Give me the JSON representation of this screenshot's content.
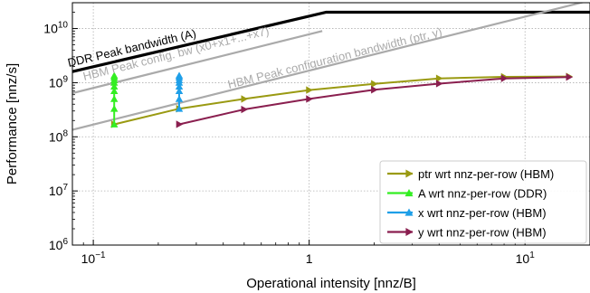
{
  "chart_data": {
    "type": "line",
    "xlabel": "Operational intensity [nnz/B]",
    "ylabel": "Performance [nnz/s]",
    "xscale": "log",
    "yscale": "log",
    "xlim": [
      0.08,
      20
    ],
    "ylim": [
      1000000,
      30000000000
    ],
    "grid": true,
    "legend_position": "bottom-right",
    "x_ticks": [
      {
        "value": 0.1,
        "base": "10",
        "exp": "−1"
      },
      {
        "value": 1,
        "base": "1",
        "exp": ""
      },
      {
        "value": 10,
        "base": "10",
        "exp": "1"
      }
    ],
    "y_ticks": [
      {
        "value": 1000000,
        "base": "10",
        "exp": "6"
      },
      {
        "value": 10000000,
        "base": "10",
        "exp": "7"
      },
      {
        "value": 100000000,
        "base": "10",
        "exp": "8"
      },
      {
        "value": 1000000000,
        "base": "10",
        "exp": "9"
      },
      {
        "value": 10000000000,
        "base": "10",
        "exp": "10"
      }
    ],
    "rooflines": [
      {
        "label": "DDR Peak bandwidth (A)",
        "color": "#000000",
        "x": [
          0.08,
          1.2,
          20
        ],
        "y": [
          1600000000,
          20000000000,
          20000000000
        ]
      },
      {
        "label": "HBM Peak config. bw (x0+x1+...+x7)",
        "color": "#aaaaaa",
        "x": [
          0.08,
          1.15
        ],
        "y": [
          640000000,
          9000000000
        ]
      },
      {
        "label": "HBM Peak configuration bandwidth (ptr, y)",
        "color": "#aaaaaa",
        "x": [
          0.08,
          20
        ],
        "y": [
          135000000,
          33000000000
        ]
      }
    ],
    "series": [
      {
        "name": "ptr wrt nnz-per-row (HBM)",
        "color": "#9a9a12",
        "x": [
          0.125,
          0.25,
          0.5,
          1,
          2,
          4,
          8,
          16
        ],
        "y": [
          170000000,
          330000000,
          500000000,
          730000000,
          950000000,
          1200000000,
          1280000000,
          1300000000
        ]
      },
      {
        "name": "A wrt nnz-per-row (DDR)",
        "color": "#33ee22",
        "x": [
          0.125,
          0.125,
          0.125,
          0.125,
          0.125,
          0.125,
          0.125,
          0.125,
          0.125
        ],
        "y": [
          170000000,
          330000000,
          500000000,
          700000000,
          850000000,
          1000000000,
          1120000000,
          1250000000,
          1350000000
        ]
      },
      {
        "name": "x wrt nnz-per-row (HBM)",
        "color": "#1e9fe8",
        "x": [
          0.25,
          0.25,
          0.25,
          0.25,
          0.25,
          0.25,
          0.25,
          0.25
        ],
        "y": [
          330000000,
          500000000,
          700000000,
          850000000,
          1000000000,
          1120000000,
          1250000000,
          1350000000
        ]
      },
      {
        "name": "y wrt nnz-per-row (HBM)",
        "color": "#8a1f4f",
        "x": [
          0.25,
          0.5,
          1,
          2,
          4,
          8,
          16
        ],
        "y": [
          170000000,
          320000000,
          500000000,
          740000000,
          960000000,
          1200000000,
          1270000000
        ]
      }
    ]
  }
}
